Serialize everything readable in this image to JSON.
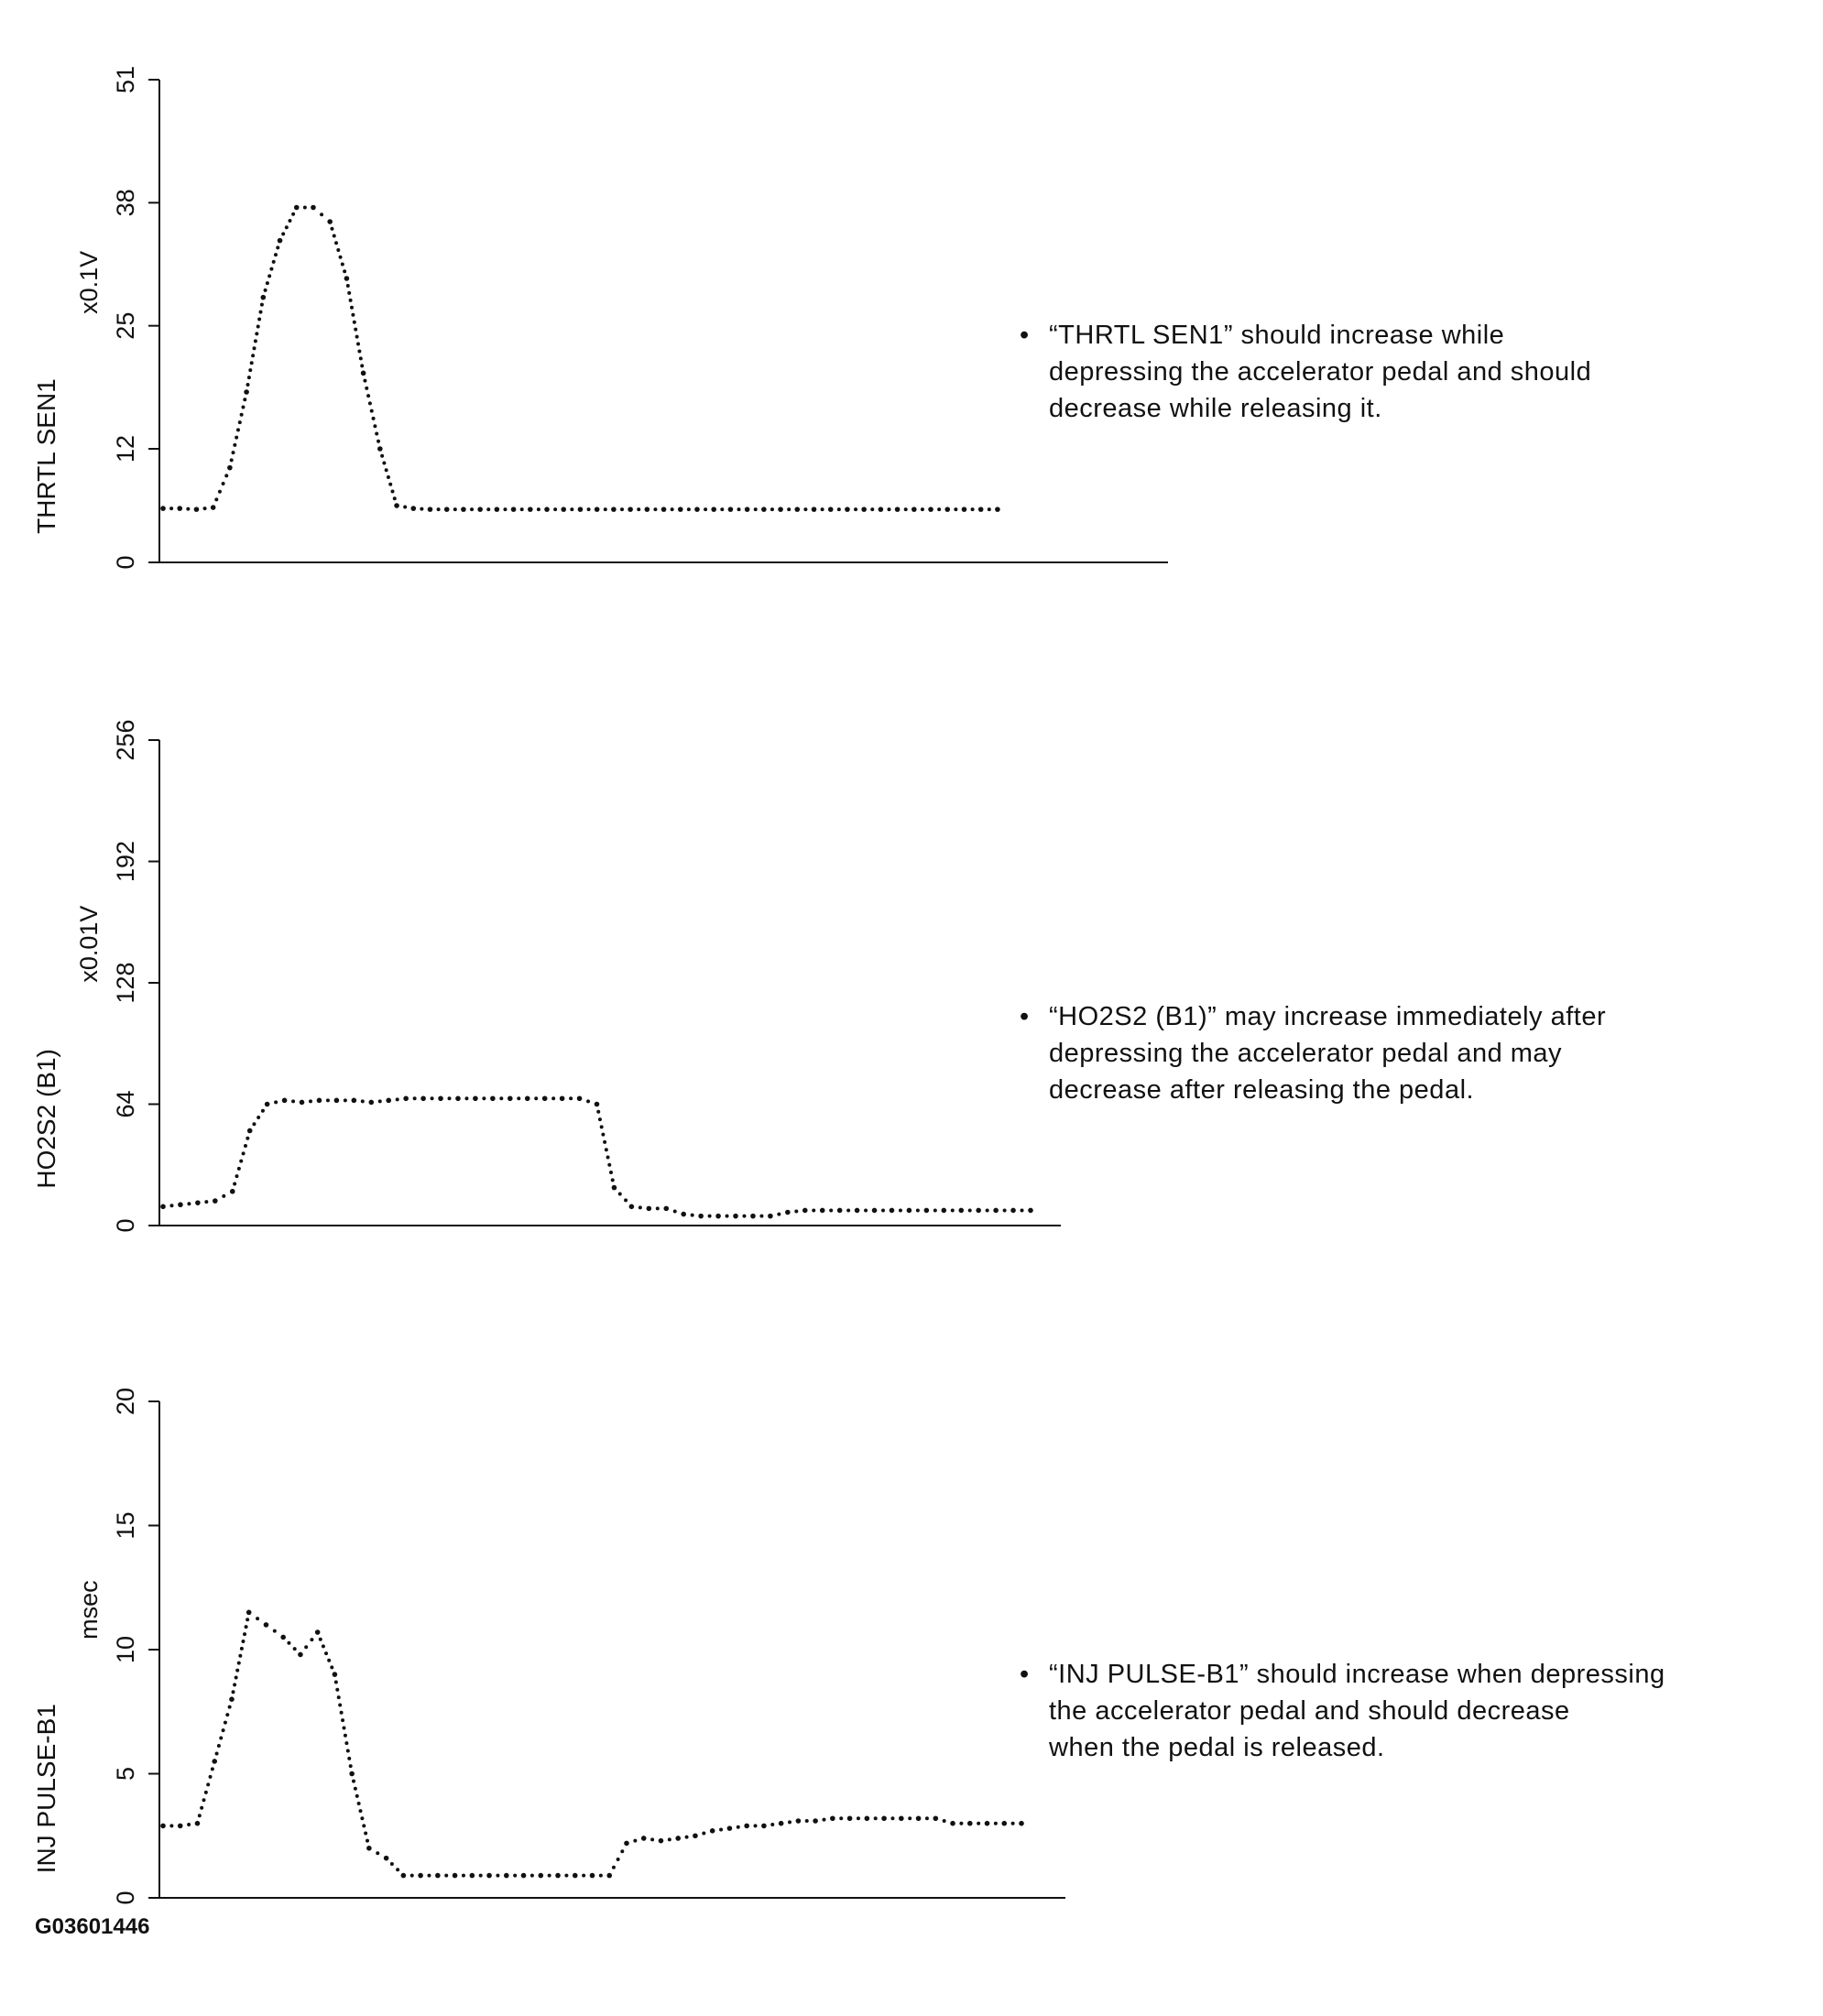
{
  "chart_data": [
    {
      "type": "scatter",
      "ylabel": "THRTL SEN1",
      "unit": "x0.1V",
      "yticks": [
        "0",
        "12",
        "25",
        "38",
        "51"
      ],
      "ylim": [
        0,
        51
      ],
      "x": [
        0,
        2,
        4,
        6,
        8,
        10,
        12,
        14,
        16,
        18,
        20,
        22,
        24,
        26,
        28,
        30,
        32,
        34,
        36,
        38,
        40,
        42,
        44,
        46,
        48,
        50,
        52,
        54,
        56,
        58,
        60,
        62,
        64,
        66,
        68,
        70,
        72,
        74,
        76,
        78,
        80,
        82,
        84,
        86,
        88,
        90,
        92,
        94,
        96,
        98,
        100
      ],
      "y": [
        5.7,
        5.7,
        5.6,
        5.8,
        10,
        18,
        28,
        34,
        37.5,
        37.5,
        36,
        30,
        20,
        12,
        6,
        5.7,
        5.6,
        5.6,
        5.6,
        5.6,
        5.6,
        5.6,
        5.6,
        5.6,
        5.6,
        5.6,
        5.6,
        5.6,
        5.6,
        5.6,
        5.6,
        5.6,
        5.6,
        5.6,
        5.6,
        5.6,
        5.6,
        5.6,
        5.6,
        5.6,
        5.6,
        5.6,
        5.6,
        5.6,
        5.6,
        5.6,
        5.6,
        5.6,
        5.6,
        5.6,
        5.6
      ],
      "xlim": [
        0,
        110
      ],
      "note": [
        "“THRTL SEN1” should increase while",
        "depressing the accelerator pedal and should",
        "decrease while releasing it."
      ]
    },
    {
      "type": "scatter",
      "ylabel": "HO2S2 (B1)",
      "unit": "x0.01V",
      "yticks": [
        "0",
        "64",
        "128",
        "192",
        "256"
      ],
      "ylim": [
        0,
        256
      ],
      "x": [
        0,
        2,
        4,
        6,
        8,
        10,
        12,
        14,
        16,
        18,
        20,
        22,
        24,
        26,
        28,
        30,
        32,
        34,
        36,
        38,
        40,
        42,
        44,
        46,
        48,
        50,
        52,
        54,
        56,
        58,
        60,
        62,
        64,
        66,
        68,
        70,
        72,
        74,
        76,
        78,
        80,
        82,
        84,
        86,
        88,
        90,
        92,
        94,
        96,
        98,
        100
      ],
      "y": [
        10,
        11,
        12,
        13,
        18,
        50,
        64,
        66,
        65,
        66,
        66,
        66,
        65,
        66,
        67,
        67,
        67,
        67,
        67,
        67,
        67,
        67,
        67,
        67,
        67,
        64,
        20,
        10,
        9,
        9,
        6,
        5,
        5,
        5,
        5,
        5,
        7,
        8,
        8,
        8,
        8,
        8,
        8,
        8,
        8,
        8,
        8,
        8,
        8,
        8,
        8
      ],
      "xlim": [
        0,
        100
      ],
      "note": [
        "“HO2S2 (B1)” may increase immediately after",
        "depressing the accelerator pedal and may",
        "decrease after releasing the pedal."
      ]
    },
    {
      "type": "scatter",
      "ylabel": "INJ PULSE-B1",
      "unit": "msec",
      "yticks": [
        "0",
        "5",
        "10",
        "15",
        "20"
      ],
      "ylim": [
        0,
        20
      ],
      "x": [
        0,
        2,
        4,
        6,
        8,
        10,
        12,
        14,
        16,
        18,
        20,
        22,
        24,
        26,
        28,
        30,
        32,
        34,
        36,
        38,
        40,
        42,
        44,
        46,
        48,
        50,
        52,
        54,
        56,
        58,
        60,
        62,
        64,
        66,
        68,
        70,
        72,
        74,
        76,
        78,
        80,
        82,
        84,
        86,
        88,
        90,
        92,
        94,
        96,
        98,
        100
      ],
      "y": [
        2.9,
        2.9,
        3,
        5.5,
        8,
        11.5,
        11,
        10.5,
        9.8,
        10.7,
        9,
        5,
        2,
        1.6,
        0.9,
        0.9,
        0.9,
        0.9,
        0.9,
        0.9,
        0.9,
        0.9,
        0.9,
        0.9,
        0.9,
        0.9,
        0.9,
        2.2,
        2.4,
        2.3,
        2.4,
        2.5,
        2.7,
        2.8,
        2.9,
        2.9,
        3,
        3.1,
        3.1,
        3.2,
        3.2,
        3.2,
        3.2,
        3.2,
        3.2,
        3.2,
        3,
        3,
        3,
        3,
        3
      ],
      "xlim": [
        0,
        100
      ],
      "note": [
        "“INJ PULSE-B1” should increase when depressing",
        "the accelerator pedal and should decrease",
        "when the pedal is released."
      ]
    }
  ],
  "figure_id": "G03601446",
  "colors": {
    "ink": "#111111"
  }
}
